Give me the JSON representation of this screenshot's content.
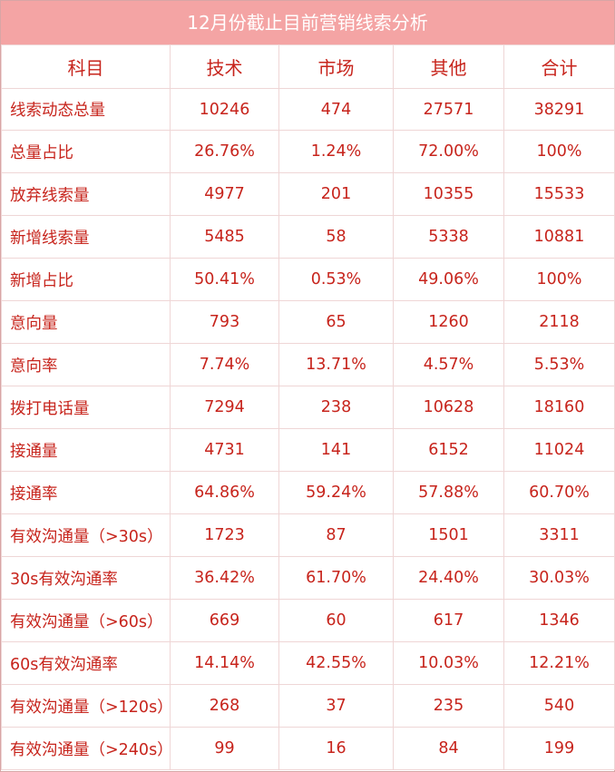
{
  "title": "12月份截止目前营销线索分析",
  "headers": [
    "科目",
    "技术",
    "市场",
    "其他",
    "合计"
  ],
  "rows": [
    [
      "线索动态总量",
      "10246",
      "474",
      "27571",
      "38291"
    ],
    [
      "总量占比",
      "26.76%",
      "1.24%",
      "72.00%",
      "100%"
    ],
    [
      "放弃线索量",
      "4977",
      "201",
      "10355",
      "15533"
    ],
    [
      "新增线索量",
      "5485",
      "58",
      "5338",
      "10881"
    ],
    [
      "新增占比",
      "50.41%",
      "0.53%",
      "49.06%",
      "100%"
    ],
    [
      "意向量",
      "793",
      "65",
      "1260",
      "2118"
    ],
    [
      "意向率",
      "7.74%",
      "13.71%",
      "4.57%",
      "5.53%"
    ],
    [
      "拨打电话量",
      "7294",
      "238",
      "10628",
      "18160"
    ],
    [
      "接通量",
      "4731",
      "141",
      "6152",
      "11024"
    ],
    [
      "接通率",
      "64.86%",
      "59.24%",
      "57.88%",
      "60.70%"
    ],
    [
      "有效沟通量（>30s）",
      "1723",
      "87",
      "1501",
      "3311"
    ],
    [
      "30s有效沟通率",
      "36.42%",
      "61.70%",
      "24.40%",
      "30.03%"
    ],
    [
      "有效沟通量（>60s）",
      "669",
      "60",
      "617",
      "1346"
    ],
    [
      "60s有效沟通率",
      "14.14%",
      "42.55%",
      "10.03%",
      "12.21%"
    ],
    [
      "有效沟通量（>120s）",
      "268",
      "37",
      "235",
      "540"
    ],
    [
      "有效沟通量（>240s）",
      "99",
      "16",
      "84",
      "199"
    ]
  ],
  "colors": {
    "header_bg": "#f4a4a4",
    "text": "#c7241c",
    "grid": "#efd6d6"
  }
}
